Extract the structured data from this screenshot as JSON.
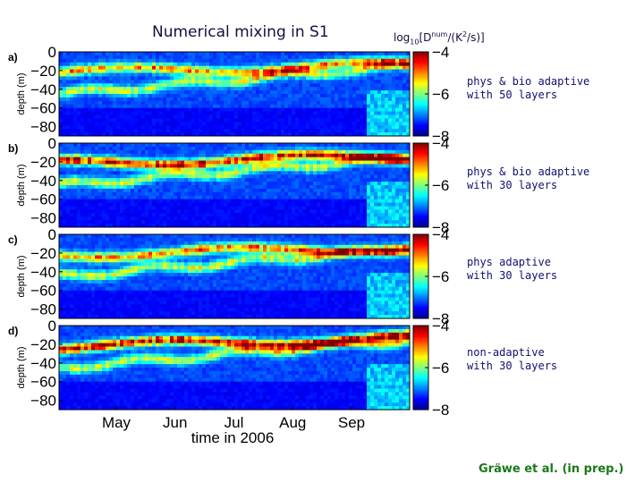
{
  "title": "Numerical mixing in S1",
  "colorbar_label_parts": {
    "base": "log",
    "base_sub": "10",
    "open": "[D",
    "sup": "num",
    "unit": "/(K",
    "unit_sup": "2",
    "close": "/s)]"
  },
  "chart_data": {
    "type": "heatmap",
    "xlabel": "time in 2006",
    "ylabel": "depth (m)",
    "x_ticks": [
      "May",
      "Jun",
      "Jul",
      "Aug",
      "Sep"
    ],
    "y_ticks": [
      "0",
      "−20",
      "−40",
      "−60",
      "−80"
    ],
    "ylim": [
      -90,
      0
    ],
    "colorbar_ticks": [
      "−4",
      "−6",
      "−8"
    ],
    "colorbar_range": [
      -8,
      -4
    ],
    "panels": [
      {
        "letter": "a)",
        "label_line1": "phys & bio adaptive",
        "label_line2": "with 50 layers",
        "max_intensity": 0.68
      },
      {
        "letter": "b)",
        "label_line1": "phys & bio adaptive",
        "label_line2": "with 30 layers",
        "max_intensity": 0.92
      },
      {
        "letter": "c)",
        "label_line1": "phys adaptive",
        "label_line2": "with 30 layers",
        "max_intensity": 0.74
      },
      {
        "letter": "d)",
        "label_line1": "non-adaptive",
        "label_line2": "with 30 layers",
        "max_intensity": 0.95
      }
    ]
  },
  "credit": "Gräwe et al. (in prep.)"
}
